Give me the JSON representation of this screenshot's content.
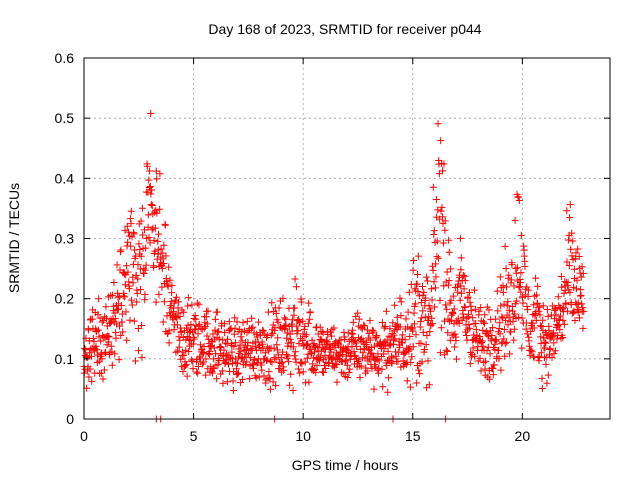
{
  "chart_data": {
    "type": "scatter",
    "title": "Day 168 of 2023, SRMTID for receiver p044",
    "xlabel": "GPS time / hours",
    "ylabel": "SRMTID / TECUs",
    "xlim": [
      0,
      24
    ],
    "ylim": [
      0,
      0.6
    ],
    "xticks": [
      0,
      5,
      10,
      15,
      20
    ],
    "yticks": [
      0,
      0.1,
      0.2,
      0.3,
      0.4,
      0.5,
      0.6
    ],
    "grid": true,
    "marker": "+",
    "color": "#ff0000",
    "series": [
      {
        "name": "SRMTID",
        "envelope": {
          "x": [
            0.0,
            0.3,
            0.8,
            1.2,
            1.5,
            1.8,
            2.0,
            2.3,
            2.6,
            2.8,
            3.0,
            3.2,
            3.4,
            3.6,
            3.8,
            4.0,
            4.3,
            4.6,
            5.0,
            5.5,
            6.0,
            6.5,
            7.0,
            7.5,
            8.0,
            8.5,
            9.0,
            9.5,
            10.0,
            10.5,
            11.0,
            11.5,
            12.0,
            12.5,
            13.0,
            13.5,
            14.0,
            14.3,
            14.6,
            14.9,
            15.2,
            15.5,
            15.8,
            16.0,
            16.2,
            16.4,
            16.6,
            16.9,
            17.2,
            17.5,
            17.8,
            18.1,
            18.4,
            18.7,
            19.0,
            19.3,
            19.6,
            19.8,
            20.1,
            20.4,
            20.7,
            21.0,
            21.3,
            21.6,
            21.9,
            22.2,
            22.5,
            22.8
          ],
          "center": [
            0.1,
            0.12,
            0.13,
            0.15,
            0.17,
            0.22,
            0.27,
            0.25,
            0.24,
            0.27,
            0.36,
            0.31,
            0.3,
            0.26,
            0.22,
            0.18,
            0.14,
            0.13,
            0.13,
            0.13,
            0.12,
            0.11,
            0.11,
            0.12,
            0.12,
            0.12,
            0.13,
            0.13,
            0.14,
            0.12,
            0.11,
            0.11,
            0.11,
            0.12,
            0.12,
            0.11,
            0.12,
            0.13,
            0.14,
            0.16,
            0.18,
            0.15,
            0.15,
            0.25,
            0.36,
            0.3,
            0.2,
            0.16,
            0.2,
            0.18,
            0.14,
            0.12,
            0.13,
            0.14,
            0.16,
            0.18,
            0.22,
            0.29,
            0.2,
            0.14,
            0.16,
            0.13,
            0.13,
            0.16,
            0.19,
            0.24,
            0.21,
            0.2
          ],
          "spread": [
            0.04,
            0.05,
            0.05,
            0.06,
            0.07,
            0.09,
            0.1,
            0.1,
            0.11,
            0.12,
            0.14,
            0.12,
            0.12,
            0.1,
            0.08,
            0.06,
            0.06,
            0.06,
            0.06,
            0.05,
            0.05,
            0.05,
            0.05,
            0.05,
            0.05,
            0.05,
            0.06,
            0.07,
            0.07,
            0.05,
            0.04,
            0.04,
            0.04,
            0.05,
            0.05,
            0.04,
            0.05,
            0.06,
            0.07,
            0.08,
            0.1,
            0.08,
            0.07,
            0.12,
            0.18,
            0.15,
            0.08,
            0.07,
            0.09,
            0.08,
            0.06,
            0.05,
            0.06,
            0.06,
            0.07,
            0.08,
            0.1,
            0.11,
            0.09,
            0.05,
            0.07,
            0.05,
            0.05,
            0.06,
            0.07,
            0.1,
            0.09,
            0.07
          ]
        },
        "zero_values_x": [
          3.3,
          3.5,
          8.7,
          14.1,
          16.5
        ]
      }
    ]
  }
}
